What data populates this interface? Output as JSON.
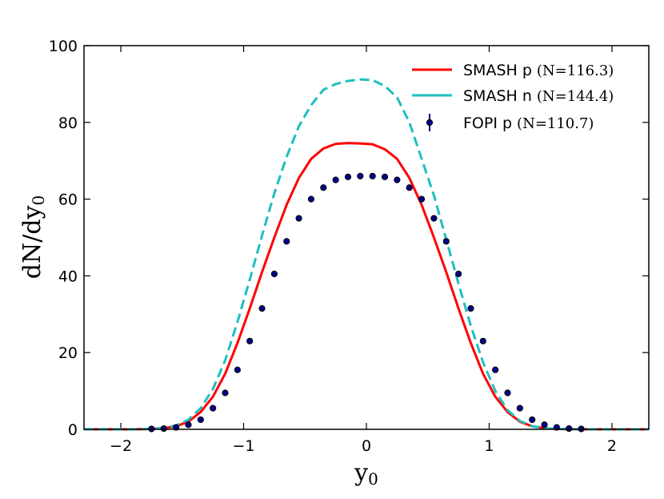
{
  "chart_data": {
    "type": "line",
    "title": "",
    "xlabel": "y",
    "xlabel_sub": "0",
    "ylabel": "dN/dy",
    "ylabel_sub": "0",
    "xlim": [
      -2.3,
      2.3
    ],
    "ylim": [
      0,
      100
    ],
    "xticks": [
      -2,
      -1,
      0,
      1,
      2
    ],
    "xtick_labels": [
      "−2",
      "−1",
      "0",
      "1",
      "2"
    ],
    "yticks": [
      0,
      20,
      40,
      60,
      80,
      100
    ],
    "ytick_labels": [
      "0",
      "20",
      "40",
      "60",
      "80",
      "100"
    ],
    "legend_position": "top-right",
    "grid": false,
    "series": [
      {
        "name": "SMASH p",
        "count_label": "(N=116.3)",
        "color": "#ff0000",
        "style": "solid",
        "x": [
          -2.3,
          -1.9,
          -1.75,
          -1.65,
          -1.55,
          -1.45,
          -1.35,
          -1.25,
          -1.15,
          -1.05,
          -0.95,
          -0.85,
          -0.75,
          -0.65,
          -0.55,
          -0.45,
          -0.35,
          -0.25,
          -0.15,
          -0.05,
          0.05,
          0.15,
          0.25,
          0.35,
          0.45,
          0.55,
          0.65,
          0.75,
          0.85,
          0.95,
          1.05,
          1.15,
          1.25,
          1.35,
          1.45,
          1.55,
          1.65,
          1.75,
          1.9,
          2.3
        ],
        "y": [
          0,
          0,
          0.1,
          0.3,
          0.8,
          2.0,
          4.5,
          8.5,
          14.5,
          22.5,
          31.5,
          41.0,
          50.0,
          58.5,
          65.5,
          70.5,
          73.2,
          74.4,
          74.6,
          74.5,
          74.3,
          73.0,
          70.5,
          65.5,
          58.5,
          50.0,
          41.0,
          31.5,
          22.5,
          14.5,
          8.5,
          4.5,
          2.0,
          0.8,
          0.3,
          0.1,
          0.05,
          0,
          0,
          0
        ]
      },
      {
        "name": "SMASH n",
        "count_label": "(N=144.4)",
        "color": "#1fbfbf",
        "style": "dashed",
        "x": [
          -2.3,
          -1.9,
          -1.75,
          -1.65,
          -1.55,
          -1.45,
          -1.35,
          -1.25,
          -1.15,
          -1.05,
          -0.95,
          -0.85,
          -0.75,
          -0.65,
          -0.55,
          -0.45,
          -0.35,
          -0.25,
          -0.15,
          -0.05,
          0.05,
          0.15,
          0.25,
          0.35,
          0.45,
          0.55,
          0.65,
          0.75,
          0.85,
          0.95,
          1.05,
          1.15,
          1.25,
          1.35,
          1.45,
          1.55,
          1.65,
          1.75,
          1.9,
          2.3
        ],
        "y": [
          0,
          0,
          0.1,
          0.4,
          1.0,
          2.5,
          5.5,
          10.5,
          18.0,
          28.0,
          39.0,
          50.5,
          61.5,
          71.0,
          79.0,
          84.5,
          88.5,
          90.0,
          90.8,
          91.2,
          91.0,
          89.5,
          86.5,
          80.0,
          70.5,
          61.0,
          49.5,
          38.0,
          27.0,
          17.5,
          10.0,
          5.0,
          2.2,
          0.8,
          0.3,
          0.1,
          0.05,
          0,
          0,
          0
        ]
      },
      {
        "name": "FOPI p",
        "count_label": "(N=110.7)",
        "color": "#00008b",
        "style": "markers",
        "x": [
          -1.75,
          -1.65,
          -1.55,
          -1.45,
          -1.35,
          -1.25,
          -1.15,
          -1.05,
          -0.95,
          -0.85,
          -0.75,
          -0.65,
          -0.55,
          -0.45,
          -0.35,
          -0.25,
          -0.15,
          -0.05,
          0.05,
          0.15,
          0.25,
          0.35,
          0.45,
          0.55,
          0.65,
          0.75,
          0.85,
          0.95,
          1.05,
          1.15,
          1.25,
          1.35,
          1.45,
          1.55,
          1.65,
          1.75
        ],
        "y": [
          0.1,
          0.2,
          0.5,
          1.2,
          2.5,
          5.5,
          9.5,
          15.5,
          23.0,
          31.5,
          40.5,
          49.0,
          55.0,
          60.0,
          63.0,
          65.0,
          65.8,
          66.0,
          66.0,
          65.8,
          65.0,
          63.0,
          60.0,
          55.0,
          49.0,
          40.5,
          31.5,
          23.0,
          15.5,
          9.5,
          5.5,
          2.5,
          1.2,
          0.5,
          0.2,
          0.1
        ]
      }
    ]
  }
}
